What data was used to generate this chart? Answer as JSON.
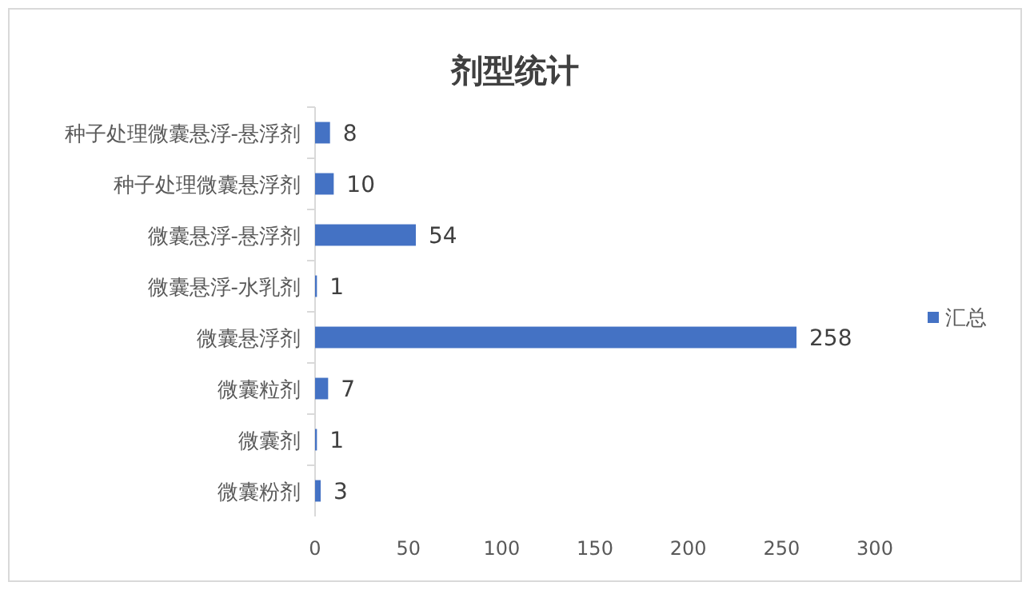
{
  "chart_data": {
    "type": "bar",
    "orientation": "horizontal",
    "title": "剂型统计",
    "categories": [
      "种子处理微囊悬浮-悬浮剂",
      "种子处理微囊悬浮剂",
      "微囊悬浮-悬浮剂",
      "微囊悬浮-水乳剂",
      "微囊悬浮剂",
      "微囊粒剂",
      "微囊剂",
      "微囊粉剂"
    ],
    "series": [
      {
        "name": "汇总",
        "color": "#4472c4",
        "values": [
          8,
          10,
          54,
          1,
          258,
          7,
          1,
          3
        ]
      }
    ],
    "xlim": [
      0,
      300
    ],
    "xticks": [
      0,
      50,
      100,
      150,
      200,
      250,
      300
    ],
    "data_labels": true,
    "legend": "right",
    "grid": false
  }
}
